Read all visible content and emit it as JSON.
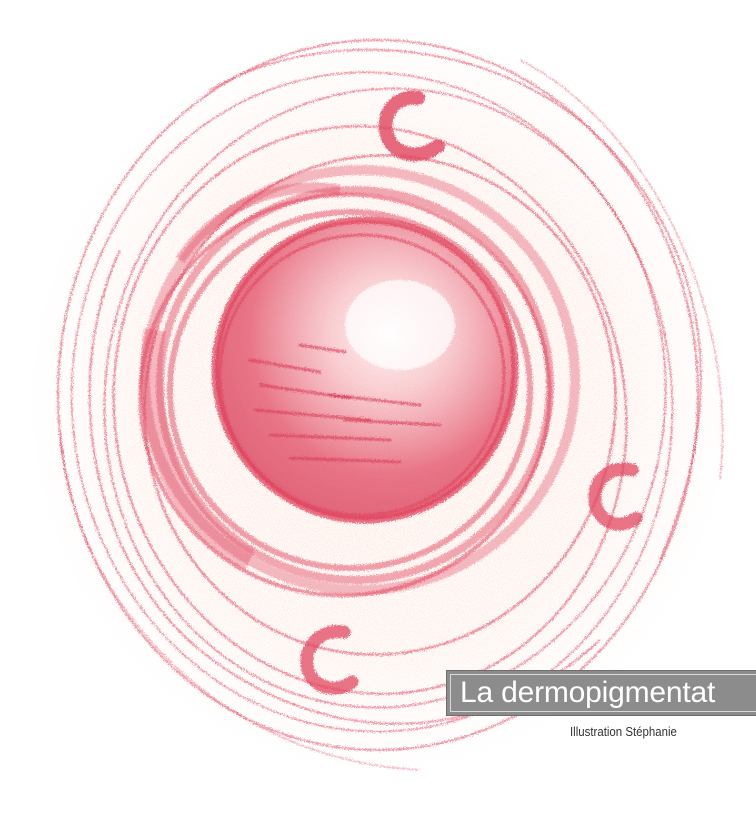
{
  "illustration": {
    "subject": "crayon-drawing-round-cell",
    "colors": {
      "crayon_red": "#e0455f",
      "crayon_pink": "#f08a93",
      "crayon_peach": "#f5a98a",
      "paper": "#ffffff"
    }
  },
  "caption": {
    "title": "La dermopigmentat",
    "credit": "Illustration Stéphanie"
  }
}
